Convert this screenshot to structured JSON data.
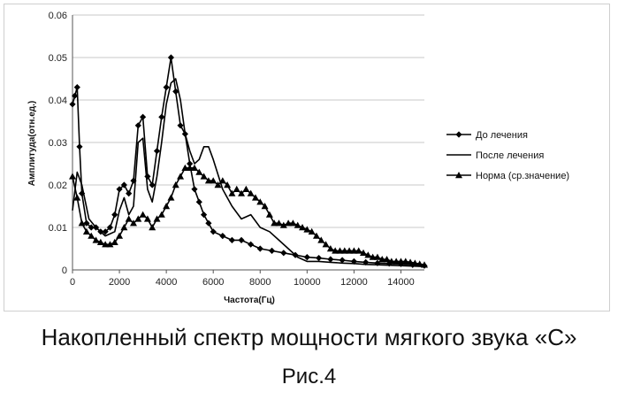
{
  "caption": "Накопленный  спектр мощности мягкого звука «С»",
  "figure_label": "Рис.4",
  "chart_data": {
    "type": "line",
    "title": "",
    "xlabel": "Частота(Гц)",
    "ylabel": "Амплитуда(отн.ед.)",
    "xlim": [
      0,
      15000
    ],
    "ylim": [
      0,
      0.06
    ],
    "xticks": [
      0,
      2000,
      4000,
      6000,
      8000,
      10000,
      12000,
      14000
    ],
    "xtick_labels": [
      "0",
      "2000",
      "4000",
      "6000",
      "8000",
      "10000",
      "12000",
      "14000"
    ],
    "yticks": [
      0,
      0.01,
      0.02,
      0.03,
      0.04,
      0.05,
      0.06
    ],
    "ytick_labels": [
      "0",
      "0.01",
      "0.02",
      "0.03",
      "0.04",
      "0.05",
      "0.06"
    ],
    "grid": "horizontal",
    "legend_position": "right",
    "series": [
      {
        "name": "До лечения",
        "marker": "diamond",
        "x": [
          0,
          100,
          200,
          300,
          400,
          600,
          800,
          1000,
          1200,
          1400,
          1600,
          1800,
          2000,
          2200,
          2400,
          2600,
          2800,
          3000,
          3200,
          3400,
          3600,
          3800,
          4000,
          4200,
          4400,
          4600,
          4800,
          5000,
          5200,
          5400,
          5600,
          5800,
          6000,
          6400,
          6800,
          7200,
          7600,
          8000,
          8500,
          9000,
          9500,
          10000,
          10500,
          11000,
          11500,
          12000,
          12500,
          13000,
          13500,
          14000,
          14500,
          15000
        ],
        "y": [
          0.039,
          0.041,
          0.043,
          0.029,
          0.018,
          0.011,
          0.01,
          0.01,
          0.009,
          0.009,
          0.01,
          0.013,
          0.019,
          0.02,
          0.018,
          0.021,
          0.034,
          0.036,
          0.022,
          0.02,
          0.028,
          0.036,
          0.043,
          0.05,
          0.042,
          0.034,
          0.032,
          0.025,
          0.019,
          0.016,
          0.013,
          0.011,
          0.009,
          0.008,
          0.007,
          0.007,
          0.006,
          0.005,
          0.0045,
          0.004,
          0.0035,
          0.003,
          0.0028,
          0.0025,
          0.0023,
          0.002,
          0.0018,
          0.0016,
          0.0015,
          0.0014,
          0.0012,
          0.001
        ]
      },
      {
        "name": "После лечения",
        "marker": "none",
        "x": [
          0,
          200,
          400,
          700,
          1000,
          1400,
          1800,
          2000,
          2200,
          2400,
          2600,
          2800,
          3000,
          3200,
          3400,
          3600,
          3800,
          4000,
          4200,
          4400,
          4600,
          4800,
          5000,
          5200,
          5400,
          5600,
          5800,
          6000,
          6400,
          6800,
          7200,
          7600,
          8000,
          8400,
          8800,
          9200,
          9600,
          10000,
          10500,
          11000,
          11500,
          12000,
          12500,
          13000,
          13500,
          14000,
          14500,
          15000
        ],
        "y": [
          0.014,
          0.023,
          0.02,
          0.012,
          0.01,
          0.008,
          0.009,
          0.014,
          0.017,
          0.013,
          0.015,
          0.03,
          0.031,
          0.019,
          0.016,
          0.022,
          0.03,
          0.039,
          0.044,
          0.045,
          0.04,
          0.032,
          0.028,
          0.025,
          0.026,
          0.029,
          0.029,
          0.026,
          0.019,
          0.015,
          0.012,
          0.013,
          0.01,
          0.009,
          0.007,
          0.005,
          0.003,
          0.002,
          0.002,
          0.0018,
          0.0016,
          0.0015,
          0.0013,
          0.0012,
          0.0011,
          0.001,
          0.0009,
          0.0008
        ]
      },
      {
        "name": "Норма (ср.значение)",
        "marker": "triangle",
        "x": [
          0,
          200,
          400,
          600,
          800,
          1000,
          1200,
          1400,
          1600,
          1800,
          2000,
          2200,
          2400,
          2600,
          2800,
          3000,
          3200,
          3400,
          3600,
          3800,
          4000,
          4200,
          4400,
          4600,
          4800,
          5000,
          5200,
          5400,
          5600,
          5800,
          6000,
          6200,
          6400,
          6600,
          6800,
          7000,
          7200,
          7400,
          7600,
          7800,
          8000,
          8200,
          8400,
          8600,
          8800,
          9000,
          9200,
          9400,
          9600,
          9800,
          10000,
          10200,
          10400,
          10600,
          10800,
          11000,
          11200,
          11400,
          11600,
          11800,
          12000,
          12200,
          12400,
          12600,
          12800,
          13000,
          13200,
          13400,
          13600,
          13800,
          14000,
          14200,
          14400,
          14600,
          14800,
          15000
        ],
        "y": [
          0.022,
          0.017,
          0.011,
          0.009,
          0.008,
          0.007,
          0.0065,
          0.006,
          0.006,
          0.0065,
          0.008,
          0.01,
          0.012,
          0.011,
          0.012,
          0.013,
          0.012,
          0.01,
          0.012,
          0.013,
          0.015,
          0.017,
          0.02,
          0.022,
          0.024,
          0.024,
          0.024,
          0.023,
          0.022,
          0.021,
          0.021,
          0.02,
          0.021,
          0.02,
          0.018,
          0.019,
          0.018,
          0.019,
          0.018,
          0.017,
          0.016,
          0.015,
          0.013,
          0.011,
          0.011,
          0.0105,
          0.011,
          0.011,
          0.0105,
          0.01,
          0.0095,
          0.009,
          0.008,
          0.007,
          0.006,
          0.005,
          0.0045,
          0.0045,
          0.0045,
          0.0045,
          0.0045,
          0.0045,
          0.004,
          0.0035,
          0.003,
          0.003,
          0.0025,
          0.0025,
          0.002,
          0.002,
          0.002,
          0.002,
          0.0018,
          0.0016,
          0.0014,
          0.0012
        ]
      }
    ]
  }
}
